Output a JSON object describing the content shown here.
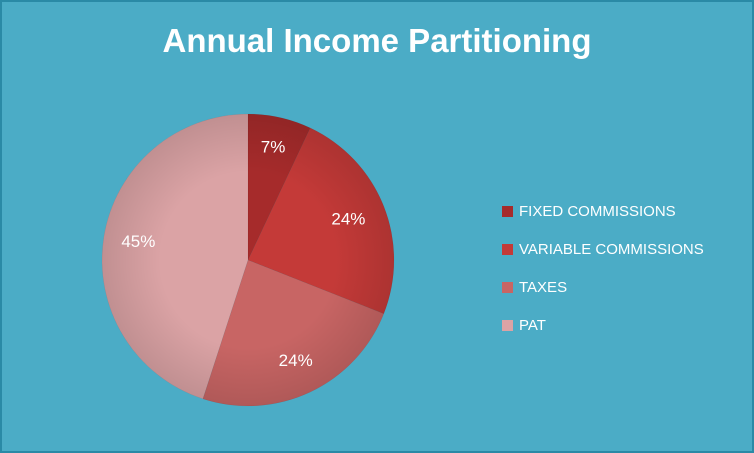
{
  "chart_data": {
    "type": "pie",
    "title": "Annual Income Partitioning",
    "categories": [
      "FIXED COMMISSIONS",
      "VARIABLE COMMISSIONS",
      "TAXES",
      "PAT"
    ],
    "values": [
      7,
      24,
      24,
      45
    ],
    "labels": [
      "7%",
      "24%",
      "24%",
      "45%"
    ],
    "colors": [
      "#a62b2b",
      "#c43a38",
      "#c86564",
      "#dba3a5"
    ],
    "legend_position": "right"
  },
  "colors": {
    "background": "#4bacc6",
    "text": "#ffffff"
  }
}
